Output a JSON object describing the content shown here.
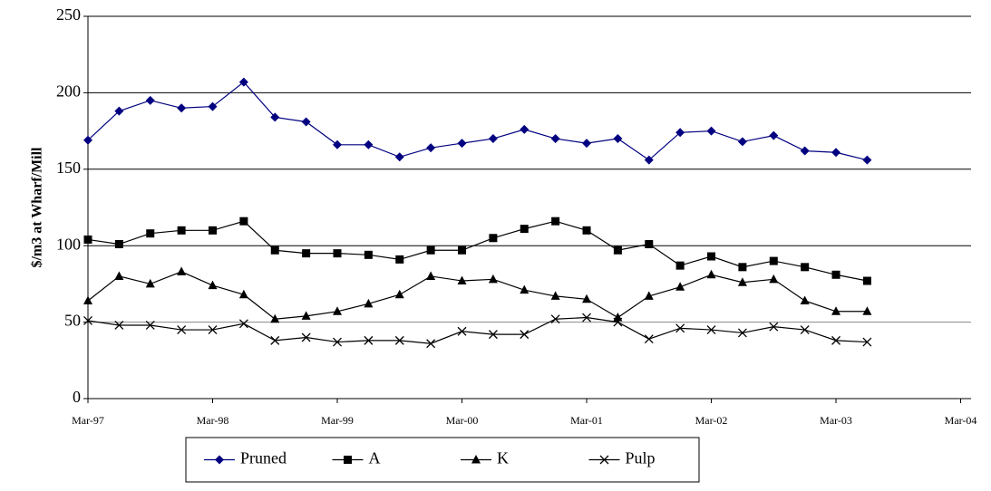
{
  "chart_data": {
    "type": "line",
    "y_label": "$/m3 at Wharf/Mill",
    "x": [
      0,
      3,
      6,
      9,
      12,
      15,
      18,
      21,
      24,
      27,
      30,
      33,
      36,
      39,
      42,
      45,
      48,
      51,
      54,
      57,
      60,
      63,
      66,
      69,
      72,
      75
    ],
    "xlim": [
      0,
      85
    ],
    "xticks": [
      {
        "value": 0,
        "label": "Mar-97"
      },
      {
        "value": 12,
        "label": "Mar-98"
      },
      {
        "value": 24,
        "label": "Mar-99"
      },
      {
        "value": 36,
        "label": "Mar-00"
      },
      {
        "value": 48,
        "label": "Mar-01"
      },
      {
        "value": 60,
        "label": "Mar-02"
      },
      {
        "value": 72,
        "label": "Mar-03"
      },
      {
        "value": 84,
        "label": "Mar-04"
      }
    ],
    "ylim": [
      0,
      250
    ],
    "yticks": [
      0,
      50,
      100,
      150,
      200,
      250
    ],
    "grid": true,
    "legend": "bottom",
    "series": [
      {
        "name": "Pruned",
        "color": "#000080",
        "marker": "diamond",
        "values": [
          169,
          188,
          195,
          190,
          191,
          207,
          184,
          181,
          166,
          166,
          158,
          164,
          167,
          170,
          176,
          170,
          167,
          170,
          156,
          174,
          175,
          168,
          172,
          162,
          161,
          156
        ]
      },
      {
        "name": "A",
        "color": "#000000",
        "marker": "square",
        "values": [
          104,
          101,
          108,
          110,
          110,
          116,
          97,
          95,
          95,
          94,
          91,
          97,
          97,
          105,
          111,
          116,
          110,
          97,
          101,
          87,
          93,
          86,
          90,
          86,
          81,
          77
        ]
      },
      {
        "name": "K",
        "color": "#000000",
        "marker": "triangle",
        "values": [
          64,
          80,
          75,
          83,
          74,
          68,
          52,
          54,
          57,
          62,
          68,
          80,
          77,
          78,
          71,
          67,
          65,
          53,
          67,
          73,
          81,
          76,
          78,
          64,
          57,
          57
        ]
      },
      {
        "name": "Pulp",
        "color": "#000000",
        "marker": "x",
        "values": [
          51,
          48,
          48,
          45,
          45,
          49,
          38,
          40,
          37,
          38,
          38,
          36,
          44,
          42,
          42,
          52,
          53,
          50,
          39,
          46,
          45,
          43,
          47,
          45,
          38,
          37
        ]
      }
    ]
  }
}
